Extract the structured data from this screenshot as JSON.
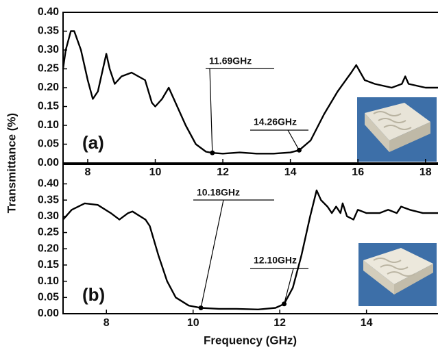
{
  "chart_data": [
    {
      "type": "line",
      "panel_label": "(a)",
      "ylabel": "Transmittance (%)",
      "color": "#000000",
      "x": [
        7.27,
        7.35,
        7.5,
        7.6,
        7.8,
        8.0,
        8.15,
        8.3,
        8.55,
        8.65,
        8.8,
        9.0,
        9.3,
        9.7,
        9.9,
        10.0,
        10.2,
        10.4,
        10.6,
        10.9,
        11.2,
        11.5,
        11.69,
        12.0,
        12.5,
        13.0,
        13.5,
        14.0,
        14.26,
        14.6,
        15.0,
        15.4,
        15.8,
        15.95,
        16.2,
        16.5,
        17.0,
        17.3,
        17.4,
        17.5,
        18.0,
        18.37
      ],
      "values": [
        0.25,
        0.3,
        0.35,
        0.35,
        0.3,
        0.22,
        0.17,
        0.19,
        0.29,
        0.25,
        0.21,
        0.23,
        0.24,
        0.22,
        0.16,
        0.15,
        0.17,
        0.2,
        0.16,
        0.1,
        0.05,
        0.03,
        0.027,
        0.025,
        0.028,
        0.025,
        0.025,
        0.028,
        0.034,
        0.06,
        0.13,
        0.19,
        0.24,
        0.26,
        0.22,
        0.21,
        0.2,
        0.21,
        0.23,
        0.21,
        0.2,
        0.2
      ],
      "xlim": [
        7.27,
        18.37
      ],
      "xticks": [
        8,
        10,
        12,
        14,
        16,
        18
      ],
      "ylim": [
        0,
        0.4
      ],
      "yticks": [
        {
          "value": 0,
          "label": "0.00"
        },
        {
          "value": 0.05,
          "label": "0.05"
        },
        {
          "value": 0.1,
          "label": "0.10"
        },
        {
          "value": 0.15,
          "label": "0.15"
        },
        {
          "value": 0.2,
          "label": "0.20"
        },
        {
          "value": 0.25,
          "label": "0.25"
        },
        {
          "value": 0.3,
          "label": "0.30"
        },
        {
          "value": 0.35,
          "label": "0.35"
        },
        {
          "value": 0.4,
          "label": "0.40"
        }
      ],
      "annotations": [
        {
          "text": "11.69GHz",
          "x": 11.69,
          "y": 0.027
        },
        {
          "text": "14.26GHz",
          "x": 14.26,
          "y": 0.034
        }
      ]
    },
    {
      "type": "line",
      "panel_label": "(b)",
      "xlabel": "Frequency (GHz)",
      "color": "#000000",
      "x": [
        7.0,
        7.2,
        7.5,
        7.8,
        8.1,
        8.3,
        8.5,
        8.6,
        8.9,
        9.0,
        9.2,
        9.4,
        9.6,
        9.9,
        10.18,
        10.6,
        11.0,
        11.5,
        11.9,
        12.1,
        12.3,
        12.5,
        12.7,
        12.85,
        12.95,
        13.1,
        13.2,
        13.3,
        13.4,
        13.45,
        13.55,
        13.7,
        13.8,
        14.0,
        14.3,
        14.5,
        14.7,
        14.8,
        15.0,
        15.3,
        15.65
      ],
      "values": [
        0.29,
        0.32,
        0.34,
        0.335,
        0.31,
        0.29,
        0.31,
        0.315,
        0.29,
        0.27,
        0.18,
        0.1,
        0.05,
        0.025,
        0.018,
        0.015,
        0.015,
        0.013,
        0.018,
        0.03,
        0.08,
        0.18,
        0.3,
        0.38,
        0.35,
        0.33,
        0.31,
        0.33,
        0.31,
        0.34,
        0.3,
        0.29,
        0.32,
        0.31,
        0.31,
        0.32,
        0.31,
        0.33,
        0.32,
        0.31,
        0.31
      ],
      "xlim": [
        7.0,
        15.65
      ],
      "xticks": [
        8,
        10,
        12,
        14
      ],
      "ylim": [
        0,
        0.46
      ],
      "yticks": [
        {
          "value": 0,
          "label": "0.00"
        },
        {
          "value": 0.05,
          "label": "0.05"
        },
        {
          "value": 0.1,
          "label": "0.10"
        },
        {
          "value": 0.15,
          "label": "0.15"
        },
        {
          "value": 0.2,
          "label": "0.20"
        },
        {
          "value": 0.25,
          "label": "0.25"
        },
        {
          "value": 0.3,
          "label": "0.30"
        },
        {
          "value": 0.35,
          "label": "0.35"
        },
        {
          "value": 0.4,
          "label": "0.40"
        }
      ],
      "annotations": [
        {
          "text": "10.18GHz",
          "x": 10.18,
          "y": 0.018
        },
        {
          "text": "12.10GHz",
          "x": 12.1,
          "y": 0.03
        }
      ]
    }
  ]
}
